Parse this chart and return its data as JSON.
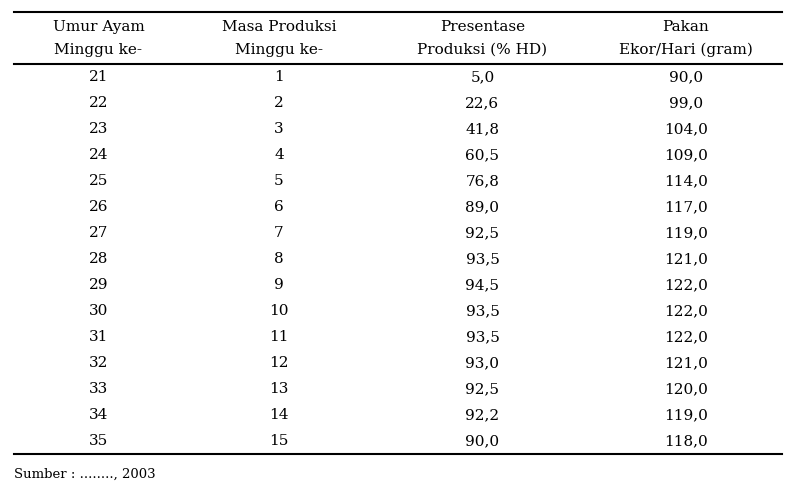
{
  "col_headers": [
    [
      "Umur Ayam",
      "Minggu ke-"
    ],
    [
      "Masa Produksi",
      "Minggu ke-"
    ],
    [
      "Presentase",
      "Produksi (% HD)"
    ],
    [
      "Pakan",
      "Ekor/Hari (gram)"
    ]
  ],
  "rows": [
    [
      "21",
      "1",
      "5,0",
      "90,0"
    ],
    [
      "22",
      "2",
      "22,6",
      "99,0"
    ],
    [
      "23",
      "3",
      "41,8",
      "104,0"
    ],
    [
      "24",
      "4",
      "60,5",
      "109,0"
    ],
    [
      "25",
      "5",
      "76,8",
      "114,0"
    ],
    [
      "26",
      "6",
      "89,0",
      "117,0"
    ],
    [
      "27",
      "7",
      "92,5",
      "119,0"
    ],
    [
      "28",
      "8",
      "93,5",
      "121,0"
    ],
    [
      "29",
      "9",
      "94,5",
      "122,0"
    ],
    [
      "30",
      "10",
      "93,5",
      "122,0"
    ],
    [
      "31",
      "11",
      "93,5",
      "122,0"
    ],
    [
      "32",
      "12",
      "93,0",
      "121,0"
    ],
    [
      "33",
      "13",
      "92,5",
      "120,0"
    ],
    [
      "34",
      "14",
      "92,2",
      "119,0"
    ],
    [
      "35",
      "15",
      "90,0",
      "118,0"
    ]
  ],
  "footer": "Sumber : ........, 2003",
  "background_color": "#ffffff",
  "text_color": "#000000",
  "font_size": 11.0,
  "footer_font_size": 9.5,
  "line_color": "#000000",
  "line_width": 1.0
}
